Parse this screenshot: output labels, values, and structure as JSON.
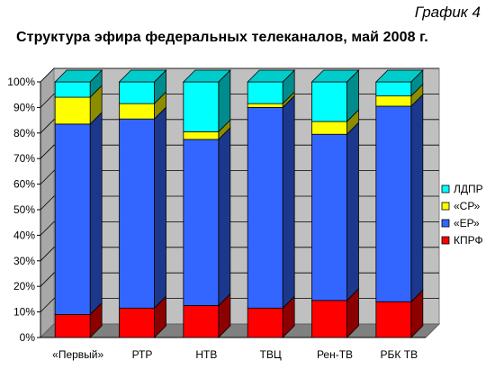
{
  "corner_label": "График 4",
  "chart_data": {
    "type": "bar",
    "stacked": true,
    "three_d": true,
    "title": "Структура эфира федеральных телеканалов, май 2008 г.",
    "categories": [
      "«Первый»",
      "РТР",
      "НТВ",
      "ТВЦ",
      "Рен-ТВ",
      "РБК ТВ"
    ],
    "series": [
      {
        "name": "КПРФ",
        "color": "#ff0000",
        "values": [
          9,
          11.5,
          12.5,
          11.5,
          14.5,
          14
        ]
      },
      {
        "name": "«ЕР»",
        "color": "#3366ff",
        "values": [
          74.5,
          74,
          65,
          78.5,
          65,
          76.5
        ]
      },
      {
        "name": "«СР»",
        "color": "#ffff00",
        "values": [
          10.5,
          6,
          3,
          1.5,
          5,
          4
        ]
      },
      {
        "name": "ЛДПР",
        "color": "#00ffff",
        "values": [
          6,
          8.5,
          19.5,
          8.5,
          15.5,
          5.5
        ]
      }
    ],
    "yticks": [
      "0%",
      "10%",
      "20%",
      "30%",
      "40%",
      "50%",
      "60%",
      "70%",
      "80%",
      "90%",
      "100%"
    ],
    "ylim": [
      0,
      100
    ],
    "legend_position": "right",
    "legend_order": [
      "ЛДПР",
      "«СР»",
      "«ЕР»",
      "КПРФ"
    ],
    "grid": true,
    "wall_color": "#c0c0c0",
    "floor_color": "#808080"
  }
}
